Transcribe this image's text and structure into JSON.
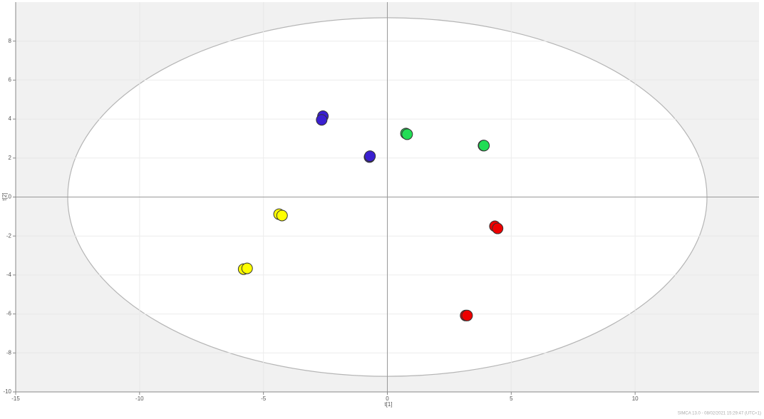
{
  "chart_data": {
    "type": "scatter",
    "xlabel": "t[1]",
    "ylabel": "t[2]",
    "footer": "SIMCA 13.0 - 08/02/2021 15:29:47 (UTC+1)",
    "xlim": [
      -15,
      15
    ],
    "ylim": [
      -10,
      10
    ],
    "xticks": [
      -15,
      -10,
      -5,
      0,
      5,
      10
    ],
    "yticks": [
      -10,
      -8,
      -6,
      -4,
      -2,
      0,
      2,
      4,
      6,
      8
    ],
    "grid": true,
    "ellipse": {
      "rx": 12.9,
      "ry": 9.2
    },
    "series": [
      {
        "color": "#3a1fd0",
        "x": [
          -2.6,
          -2.65,
          -0.72,
          -0.7
        ],
        "values": [
          4.15,
          3.96,
          2.05,
          2.1
        ]
      },
      {
        "color": "#22dd55",
        "x": [
          0.75,
          0.8,
          3.88,
          3.9
        ],
        "values": [
          3.26,
          3.22,
          2.64,
          2.64
        ]
      },
      {
        "color": "#ffff00",
        "x": [
          -4.37,
          -4.25,
          -5.8,
          -5.66
        ],
        "values": [
          -0.88,
          -0.95,
          -3.7,
          -3.66
        ]
      },
      {
        "color": "#ee0000",
        "x": [
          4.34,
          4.45,
          3.16,
          3.22
        ],
        "values": [
          -1.5,
          -1.61,
          -6.08,
          -6.08
        ]
      }
    ]
  }
}
